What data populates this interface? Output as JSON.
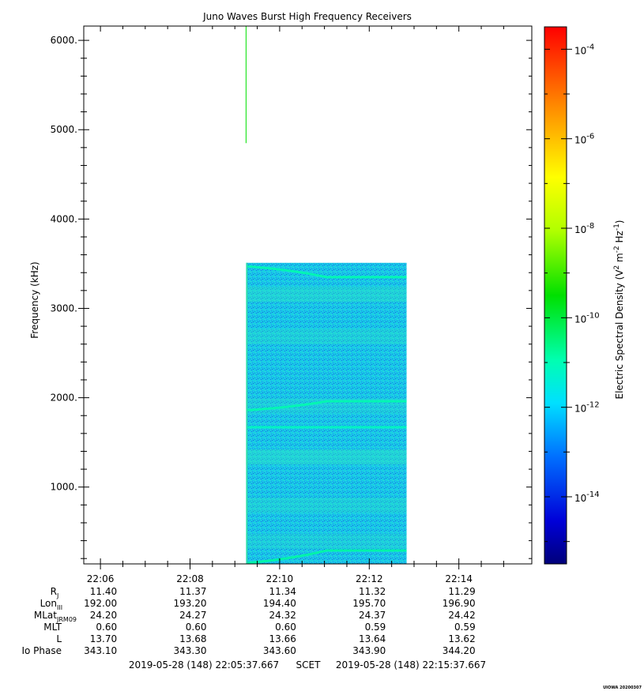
{
  "chart_data": {
    "type": "heatmap",
    "title": "Juno Waves Burst High Frequency Receivers",
    "ylabel": "Frequency (kHz)",
    "ylim": [
      140,
      6160
    ],
    "y_ticks": [
      {
        "value": 1000,
        "label": "1000."
      },
      {
        "value": 2000,
        "label": "2000."
      },
      {
        "value": 3000,
        "label": "3000."
      },
      {
        "value": 4000,
        "label": "4000."
      },
      {
        "value": 5000,
        "label": "5000."
      },
      {
        "value": 6000,
        "label": "6000."
      }
    ],
    "x_start": "2019-05-28T22:05:37.667",
    "x_end": "2019-05-28T22:15:37.667",
    "x_ticks": [
      {
        "time": "2019-05-28T22:06:00",
        "label": "22:06"
      },
      {
        "time": "2019-05-28T22:08:00",
        "label": "22:08"
      },
      {
        "time": "2019-05-28T22:10:00",
        "label": "22:10"
      },
      {
        "time": "2019-05-28T22:12:00",
        "label": "22:12"
      },
      {
        "time": "2019-05-28T22:14:00",
        "label": "22:14"
      }
    ],
    "data_block": {
      "time_start": "2019-05-28T22:09:15",
      "time_end": "2019-05-28T22:12:50",
      "freq_min": 140,
      "freq_max": 3510,
      "background_log_density": -11.7
    },
    "emission_bands": [
      {
        "freq_start": 3470,
        "freq_end": 3350,
        "log_density": -10.9
      },
      {
        "freq_start": 1860,
        "freq_end": 1960,
        "log_density": -10.9
      },
      {
        "freq_start": 1670,
        "freq_end": 1670,
        "log_density": -11.1
      },
      {
        "freq_start": 150,
        "freq_end": 290,
        "log_density": -10.8
      }
    ],
    "spike": {
      "time": "2019-05-28T22:09:15",
      "freq_min": 4850,
      "freq_max": 6160,
      "log_density": -9.5
    },
    "colorbar": {
      "label": "Electric Spectral Density",
      "unit_base": "(V",
      "unit_sup1": "2",
      "unit_mid": " m",
      "unit_sup2": "-2",
      "unit_mid2": " Hz",
      "unit_sup3": "-1",
      "unit_end": ")",
      "log_min": -15.5,
      "log_max": -3.5,
      "ticks": [
        {
          "exp": -14,
          "base": "10",
          "sup": "-14"
        },
        {
          "exp": -12,
          "base": "10",
          "sup": "-12"
        },
        {
          "exp": -10,
          "base": "10",
          "sup": "-10"
        },
        {
          "exp": -8,
          "base": "10",
          "sup": "-8"
        },
        {
          "exp": -6,
          "base": "10",
          "sup": "-6"
        },
        {
          "exp": -4,
          "base": "10",
          "sup": "-4"
        }
      ]
    },
    "ephemeris": {
      "rows": [
        {
          "label": "R",
          "sub": "J",
          "values": [
            "11.40",
            "11.37",
            "11.34",
            "11.32",
            "11.29"
          ]
        },
        {
          "label": "Lon",
          "sub": "III",
          "values": [
            "192.00",
            "193.20",
            "194.40",
            "195.70",
            "196.90"
          ]
        },
        {
          "label": "MLat",
          "sub": "JRM09",
          "values": [
            "24.20",
            "24.27",
            "24.32",
            "24.37",
            "24.42"
          ]
        },
        {
          "label": "MLT",
          "sub": "",
          "values": [
            "0.60",
            "0.60",
            "0.60",
            "0.59",
            "0.59"
          ]
        },
        {
          "label": "L",
          "sub": "",
          "values": [
            "13.70",
            "13.68",
            "13.66",
            "13.64",
            "13.62"
          ]
        },
        {
          "label": "Io Phase",
          "sub": "",
          "values": [
            "343.10",
            "343.30",
            "343.60",
            "343.90",
            "344.20"
          ]
        }
      ]
    },
    "footer": {
      "start": "2019-05-28 (148) 22:05:37.667",
      "mid": "SCET",
      "end": "2019-05-28 (148) 22:15:37.667"
    },
    "stamp": "UIOWA 20200307"
  }
}
